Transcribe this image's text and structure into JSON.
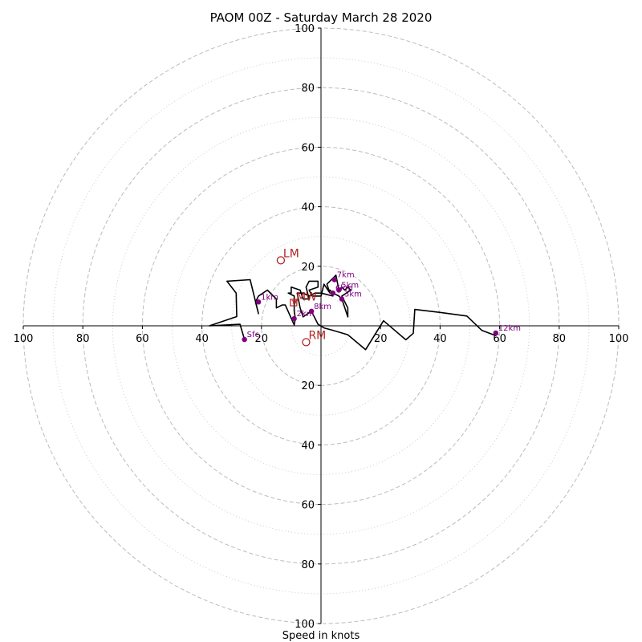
{
  "chart_data": {
    "type": "line",
    "title": "PAOM 00Z - Saturday March 28 2020",
    "xlabel": "Speed in knots",
    "ylabel": "",
    "xlim": [
      -100,
      100
    ],
    "ylim": [
      -100,
      100
    ],
    "ring_major": [
      20,
      40,
      60,
      80,
      100
    ],
    "ring_minor": [
      10,
      30,
      50,
      70,
      90
    ],
    "axis_ticks": {
      "left": [
        "100",
        "80",
        "60",
        "40",
        "20"
      ],
      "right": [
        "20",
        "40",
        "60",
        "80",
        "100"
      ],
      "top": [
        "20",
        "40",
        "60",
        "80",
        "100"
      ],
      "bottom": [
        "20",
        "40",
        "60",
        "80",
        "100"
      ]
    },
    "hodograph": [
      [
        -25.7,
        -4.6
      ],
      [
        -27.2,
        0.5
      ],
      [
        -37.5,
        0
      ],
      [
        -28.3,
        3.1
      ],
      [
        -28.5,
        11
      ],
      [
        -31.6,
        15
      ],
      [
        -23.8,
        15.5
      ],
      [
        -21,
        4.1
      ],
      [
        -22,
        8
      ],
      [
        -21,
        10
      ],
      [
        -18,
        12
      ],
      [
        -15,
        9
      ],
      [
        -15,
        6
      ],
      [
        -13,
        7
      ],
      [
        -12,
        7
      ],
      [
        -9,
        0.3
      ],
      [
        -8.6,
        2.4
      ],
      [
        -9,
        5
      ],
      [
        -9,
        8
      ],
      [
        -9,
        10
      ],
      [
        -11,
        11
      ],
      [
        -10,
        11
      ],
      [
        -10,
        13
      ],
      [
        -7,
        12
      ],
      [
        -6,
        9
      ],
      [
        -4,
        9
      ],
      [
        -5,
        13
      ],
      [
        -4,
        15
      ],
      [
        -1,
        15
      ],
      [
        -1,
        13
      ],
      [
        -4,
        12
      ],
      [
        -3,
        10
      ],
      [
        0,
        10
      ],
      [
        1,
        14
      ],
      [
        1,
        14
      ],
      [
        3,
        11
      ],
      [
        2,
        14
      ],
      [
        5,
        17
      ],
      [
        6,
        12
      ],
      [
        7,
        13
      ],
      [
        8,
        12
      ],
      [
        9,
        13
      ],
      [
        10,
        12
      ],
      [
        7,
        10
      ],
      [
        8,
        8
      ],
      [
        9,
        6
      ],
      [
        9,
        3
      ],
      [
        7,
        9
      ],
      [
        6,
        10
      ],
      [
        4,
        11
      ],
      [
        3,
        12
      ],
      [
        4,
        11
      ],
      [
        4,
        10
      ],
      [
        0,
        11
      ],
      [
        -2,
        11
      ],
      [
        -4,
        10
      ],
      [
        -6,
        11
      ],
      [
        -8,
        11
      ],
      [
        -7,
        6
      ],
      [
        -6,
        3
      ],
      [
        -3.2,
        4.9
      ],
      [
        -1,
        0.5
      ],
      [
        1,
        -0.7
      ],
      [
        4,
        -1.5
      ],
      [
        9,
        -3
      ],
      [
        15,
        -8
      ],
      [
        21,
        1.7
      ],
      [
        28.5,
        -4.7
      ],
      [
        31,
        -2.5
      ],
      [
        31.5,
        5.5
      ],
      [
        40,
        4.5
      ],
      [
        49,
        3.3
      ],
      [
        54,
        -1.5
      ],
      [
        58.7,
        -3.3
      ],
      [
        59.3,
        -2.4
      ]
    ],
    "height_markers": [
      {
        "label": "Sfc",
        "u": -25.7,
        "v": -4.6
      },
      {
        "label": "1km",
        "u": -21,
        "v": 8
      },
      {
        "label": "2km",
        "u": -9,
        "v": 2.4
      },
      {
        "label": "3km",
        "u": 7,
        "v": 9
      },
      {
        "label": "6km",
        "u": 4,
        "v": 11
      },
      {
        "label": "5km",
        "u": 6,
        "v": 12
      },
      {
        "label": "7km",
        "u": 4.5,
        "v": 15.5
      },
      {
        "label": "8km",
        "u": -3.2,
        "v": 4.9
      },
      {
        "label": "12km",
        "u": 58.7,
        "v": -2.4
      }
    ],
    "storm_motion": [
      {
        "label": "LM",
        "u": -13.5,
        "v": 22,
        "shape": "circle"
      },
      {
        "label": "MW",
        "u": -8.9,
        "v": 8.2,
        "shape": "star"
      },
      {
        "label": "RM",
        "u": -5,
        "v": -5.5,
        "shape": "circle"
      },
      {
        "label": "DTM",
        "u": -9.2,
        "v": 7.8,
        "shape": "square"
      }
    ],
    "colors": {
      "hodograph": "#000000",
      "markers": "#800080",
      "storm_motion": "#b22222",
      "rings": "#bbbbbb",
      "axes": "#000000"
    }
  }
}
